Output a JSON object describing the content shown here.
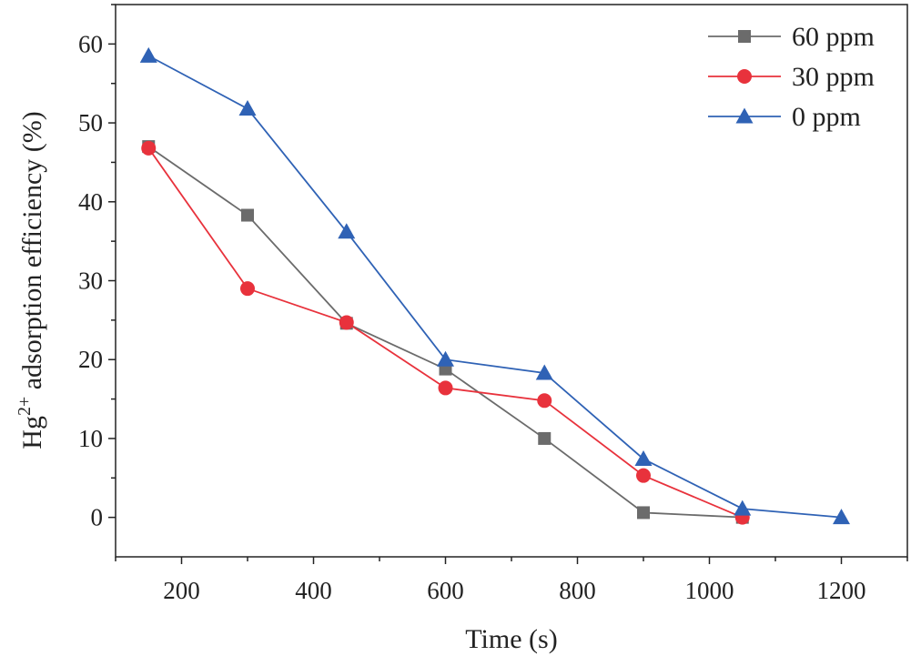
{
  "chart_data": {
    "type": "line",
    "title": "",
    "xlabel": "Time (s)",
    "ylabel_main": "Hg",
    "ylabel_sup": "2+",
    "ylabel_rest": " adsorption efficiency (%)",
    "xlim": [
      100,
      1300
    ],
    "ylim": [
      -5,
      65
    ],
    "xticks": [
      200,
      400,
      600,
      800,
      1000,
      1200
    ],
    "yticks": [
      0,
      10,
      20,
      30,
      40,
      50,
      60
    ],
    "grid": false,
    "legend_position": "top-right",
    "series": [
      {
        "name": "60 ppm",
        "color": "#6b6b6b",
        "marker": "square",
        "x": [
          150,
          300,
          450,
          600,
          750,
          900,
          1050
        ],
        "y": [
          47.0,
          38.3,
          24.6,
          18.8,
          10.0,
          0.6,
          0.0
        ]
      },
      {
        "name": "30 ppm",
        "color": "#e8323c",
        "marker": "circle",
        "x": [
          150,
          300,
          450,
          600,
          750,
          900,
          1050
        ],
        "y": [
          46.8,
          29.0,
          24.7,
          16.4,
          14.8,
          5.3,
          0.0
        ]
      },
      {
        "name": "0 ppm",
        "color": "#2f62b5",
        "marker": "triangle",
        "x": [
          150,
          300,
          450,
          600,
          750,
          900,
          1050,
          1200
        ],
        "y": [
          58.5,
          51.8,
          36.2,
          20.0,
          18.3,
          7.4,
          1.1,
          0.0
        ]
      }
    ]
  }
}
